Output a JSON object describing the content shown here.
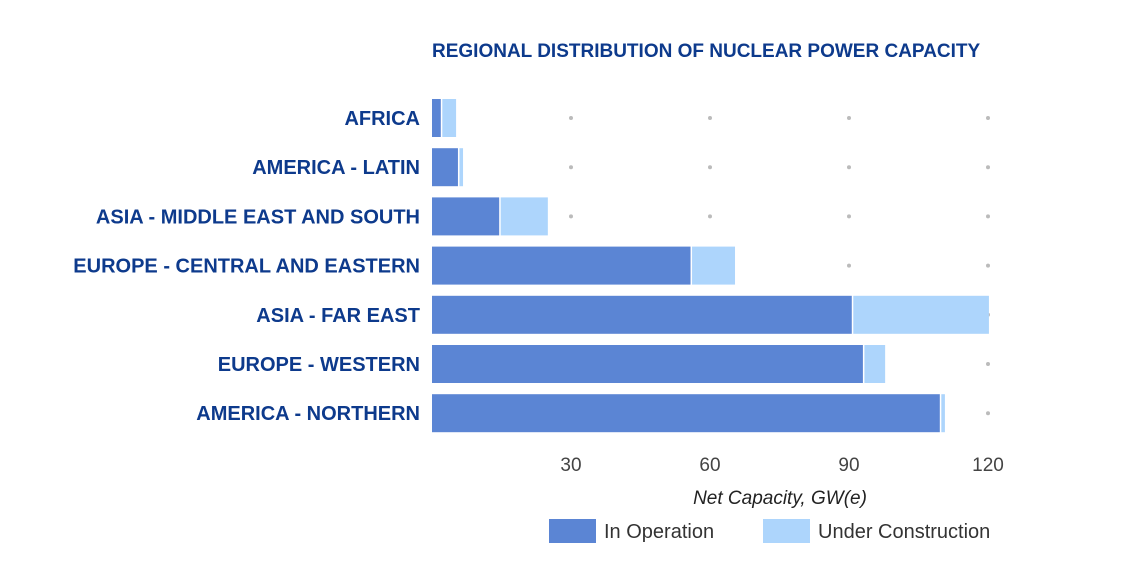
{
  "chart_data": {
    "type": "bar",
    "orientation": "horizontal",
    "stacked": true,
    "title": "REGIONAL DISTRIBUTION OF NUCLEAR POWER CAPACITY",
    "xlabel": "Net Capacity, GW(e)",
    "ylabel": "",
    "xlim": [
      0,
      120
    ],
    "xticks": [
      30,
      60,
      90,
      120
    ],
    "grid": "dots",
    "legend_position": "bottom",
    "categories": [
      "AFRICA",
      "AMERICA - LATIN",
      "ASIA - MIDDLE EAST AND SOUTH",
      "EUROPE - CENTRAL AND EASTERN",
      "ASIA - FAR EAST",
      "EUROPE - WESTERN",
      "AMERICA - NORTHERN"
    ],
    "series": [
      {
        "name": "In Operation",
        "color": "#5b85d4",
        "values": [
          1.9,
          5.6,
          14.5,
          55.8,
          90.6,
          93.0,
          109.6
        ]
      },
      {
        "name": "Under Construction",
        "color": "#add5fc",
        "values": [
          3.3,
          1.1,
          10.5,
          9.6,
          29.6,
          4.8,
          1.1
        ]
      }
    ]
  }
}
